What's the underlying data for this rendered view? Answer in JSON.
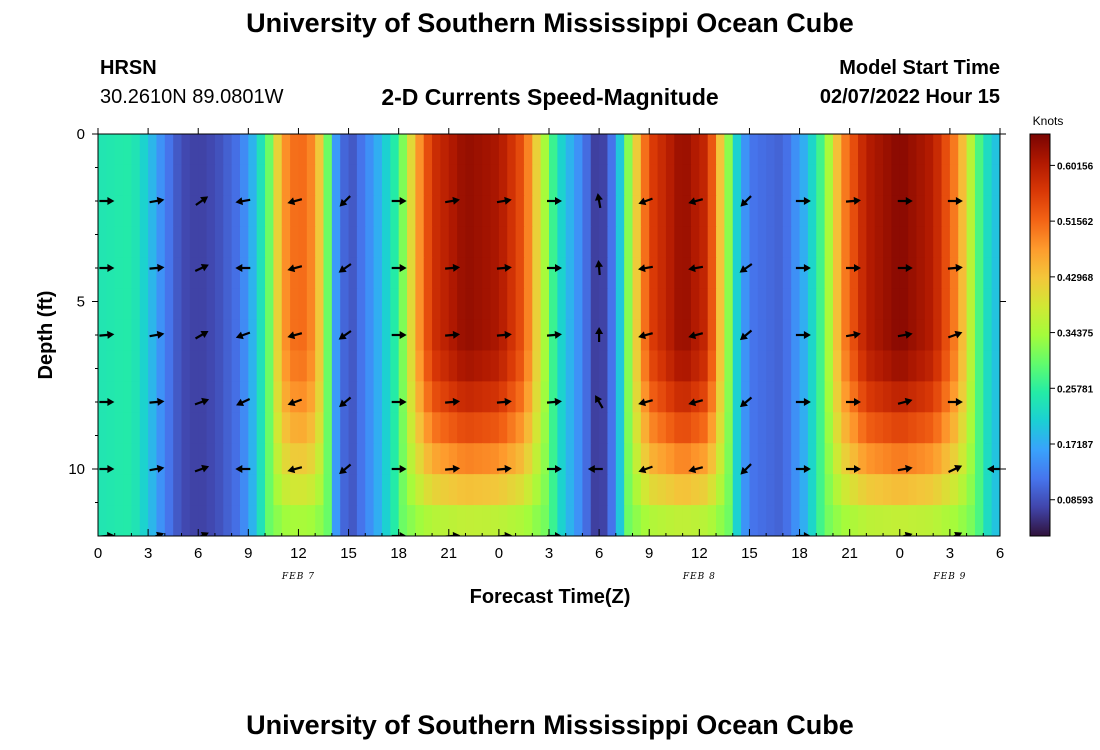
{
  "header": {
    "title": "University of Southern Mississippi Ocean Cube",
    "station": "HRSN",
    "coords": "30.2610N  89.0801W",
    "subtitle": "2-D Currents Speed-Magnitude",
    "model_start_label": "Model Start Time",
    "model_start_value": "02/07/2022 Hour 15"
  },
  "footer": {
    "title": "University of Southern Mississippi Ocean Cube"
  },
  "colors": {
    "colormap": [
      "#30123b",
      "#4145ab",
      "#4675ed",
      "#39a2fc",
      "#1bcfd4",
      "#24eca6",
      "#61fc6c",
      "#a4fc3b",
      "#d1e834",
      "#f3c63a",
      "#fe9b2d",
      "#f36315",
      "#d93806",
      "#b11901",
      "#7a0402"
    ],
    "arrow": "#000000"
  },
  "chart_data": {
    "type": "heatmap",
    "title": "2-D Currents Speed-Magnitude",
    "xlabel": "Forecast Time(Z)",
    "ylabel": "Depth (ft)",
    "xlim": [
      0,
      54
    ],
    "ylim": [
      12,
      0
    ],
    "x_ticks": [
      {
        "x": 0,
        "label": "0"
      },
      {
        "x": 3,
        "label": "3"
      },
      {
        "x": 6,
        "label": "6"
      },
      {
        "x": 9,
        "label": "9"
      },
      {
        "x": 12,
        "label": "12"
      },
      {
        "x": 15,
        "label": "15"
      },
      {
        "x": 18,
        "label": "18"
      },
      {
        "x": 21,
        "label": "21"
      },
      {
        "x": 24,
        "label": "0"
      },
      {
        "x": 27,
        "label": "3"
      },
      {
        "x": 30,
        "label": "6"
      },
      {
        "x": 33,
        "label": "9"
      },
      {
        "x": 36,
        "label": "12"
      },
      {
        "x": 39,
        "label": "15"
      },
      {
        "x": 42,
        "label": "18"
      },
      {
        "x": 45,
        "label": "21"
      },
      {
        "x": 48,
        "label": "0"
      },
      {
        "x": 51,
        "label": "3"
      },
      {
        "x": 54,
        "label": "6"
      }
    ],
    "y_ticks": [
      {
        "y": 0,
        "label": "0"
      },
      {
        "y": 5,
        "label": "5"
      },
      {
        "y": 10,
        "label": "10"
      }
    ],
    "date_labels": [
      {
        "x": 12,
        "label": "FEB 7"
      },
      {
        "x": 36,
        "label": "FEB 8"
      },
      {
        "x": 51,
        "label": "FEB 9"
      }
    ],
    "colorbar": {
      "unit": "Knots",
      "min": 0.03,
      "max": 0.65,
      "ticks": [
        "0.60156",
        "0.51562",
        "0.42968",
        "0.34375",
        "0.25781",
        "0.17187",
        "0.08593"
      ],
      "tick_values": [
        0.60156,
        0.51562,
        0.42968,
        0.34375,
        0.25781,
        0.17187,
        0.08593
      ]
    },
    "time_profile": [
      {
        "t": 0,
        "s": 0.24
      },
      {
        "t": 2,
        "s": 0.25
      },
      {
        "t": 3,
        "s": 0.2
      },
      {
        "t": 4,
        "s": 0.13
      },
      {
        "t": 5,
        "s": 0.08
      },
      {
        "t": 6,
        "s": 0.07
      },
      {
        "t": 7,
        "s": 0.08
      },
      {
        "t": 8.5,
        "s": 0.12
      },
      {
        "t": 9.5,
        "s": 0.2
      },
      {
        "t": 10.3,
        "s": 0.31
      },
      {
        "t": 11,
        "s": 0.47
      },
      {
        "t": 12,
        "s": 0.52
      },
      {
        "t": 13,
        "s": 0.48
      },
      {
        "t": 13.6,
        "s": 0.35
      },
      {
        "t": 14.2,
        "s": 0.16
      },
      {
        "t": 15,
        "s": 0.08
      },
      {
        "t": 16,
        "s": 0.13
      },
      {
        "t": 17,
        "s": 0.19
      },
      {
        "t": 18,
        "s": 0.27
      },
      {
        "t": 19,
        "s": 0.45
      },
      {
        "t": 20,
        "s": 0.57
      },
      {
        "t": 22,
        "s": 0.63
      },
      {
        "t": 24,
        "s": 0.61
      },
      {
        "t": 25.5,
        "s": 0.53
      },
      {
        "t": 26.5,
        "s": 0.38
      },
      {
        "t": 27.5,
        "s": 0.23
      },
      {
        "t": 29,
        "s": 0.13
      },
      {
        "t": 30,
        "s": 0.05
      },
      {
        "t": 31,
        "s": 0.14
      },
      {
        "t": 32,
        "s": 0.38
      },
      {
        "t": 33,
        "s": 0.55
      },
      {
        "t": 35,
        "s": 0.63
      },
      {
        "t": 36.5,
        "s": 0.58
      },
      {
        "t": 37.5,
        "s": 0.38
      },
      {
        "t": 38.3,
        "s": 0.2
      },
      {
        "t": 39,
        "s": 0.12
      },
      {
        "t": 41,
        "s": 0.1
      },
      {
        "t": 42.5,
        "s": 0.19
      },
      {
        "t": 43.5,
        "s": 0.3
      },
      {
        "t": 44.5,
        "s": 0.48
      },
      {
        "t": 46,
        "s": 0.6
      },
      {
        "t": 48,
        "s": 0.64
      },
      {
        "t": 50,
        "s": 0.6
      },
      {
        "t": 51.5,
        "s": 0.48
      },
      {
        "t": 52.3,
        "s": 0.35
      },
      {
        "t": 53,
        "s": 0.24
      },
      {
        "t": 54,
        "s": 0.18
      }
    ],
    "arrows": [
      {
        "t": 0.5,
        "d": 2,
        "dir": 0
      },
      {
        "t": 3.5,
        "d": 2,
        "dir": 10
      },
      {
        "t": 6.2,
        "d": 2,
        "dir": 35
      },
      {
        "t": 8.7,
        "d": 2,
        "dir": 190
      },
      {
        "t": 11.8,
        "d": 2,
        "dir": 195
      },
      {
        "t": 14.8,
        "d": 2,
        "dir": 225
      },
      {
        "t": 18,
        "d": 2,
        "dir": 0
      },
      {
        "t": 21.2,
        "d": 2,
        "dir": 10
      },
      {
        "t": 24.3,
        "d": 2,
        "dir": 10
      },
      {
        "t": 27.3,
        "d": 2,
        "dir": 0
      },
      {
        "t": 30,
        "d": 2,
        "dir": 100
      },
      {
        "t": 32.8,
        "d": 2,
        "dir": 200
      },
      {
        "t": 35.8,
        "d": 2,
        "dir": 195
      },
      {
        "t": 38.8,
        "d": 2,
        "dir": 225
      },
      {
        "t": 42.2,
        "d": 2,
        "dir": 0
      },
      {
        "t": 45.2,
        "d": 2,
        "dir": 5
      },
      {
        "t": 48.3,
        "d": 2,
        "dir": 0
      },
      {
        "t": 51.3,
        "d": 2,
        "dir": 0
      },
      {
        "t": 0.5,
        "d": 4,
        "dir": 0
      },
      {
        "t": 3.5,
        "d": 4,
        "dir": 5
      },
      {
        "t": 6.2,
        "d": 4,
        "dir": 25
      },
      {
        "t": 8.7,
        "d": 4,
        "dir": 180
      },
      {
        "t": 11.8,
        "d": 4,
        "dir": 195
      },
      {
        "t": 14.8,
        "d": 4,
        "dir": 215
      },
      {
        "t": 18,
        "d": 4,
        "dir": 0
      },
      {
        "t": 21.2,
        "d": 4,
        "dir": 5
      },
      {
        "t": 24.3,
        "d": 4,
        "dir": 5
      },
      {
        "t": 27.3,
        "d": 4,
        "dir": 0
      },
      {
        "t": 30,
        "d": 4,
        "dir": 95
      },
      {
        "t": 32.8,
        "d": 4,
        "dir": 190
      },
      {
        "t": 35.8,
        "d": 4,
        "dir": 190
      },
      {
        "t": 38.8,
        "d": 4,
        "dir": 215
      },
      {
        "t": 42.2,
        "d": 4,
        "dir": 0
      },
      {
        "t": 45.2,
        "d": 4,
        "dir": 0
      },
      {
        "t": 48.3,
        "d": 4,
        "dir": 0
      },
      {
        "t": 51.3,
        "d": 4,
        "dir": 5
      },
      {
        "t": 0.5,
        "d": 6,
        "dir": 5
      },
      {
        "t": 3.5,
        "d": 6,
        "dir": 10
      },
      {
        "t": 6.2,
        "d": 6,
        "dir": 30
      },
      {
        "t": 8.7,
        "d": 6,
        "dir": 200
      },
      {
        "t": 11.8,
        "d": 6,
        "dir": 195
      },
      {
        "t": 14.8,
        "d": 6,
        "dir": 215
      },
      {
        "t": 18,
        "d": 6,
        "dir": 0
      },
      {
        "t": 21.2,
        "d": 6,
        "dir": 5
      },
      {
        "t": 24.3,
        "d": 6,
        "dir": 5
      },
      {
        "t": 27.3,
        "d": 6,
        "dir": 5
      },
      {
        "t": 30,
        "d": 6,
        "dir": 90
      },
      {
        "t": 32.8,
        "d": 6,
        "dir": 195
      },
      {
        "t": 35.8,
        "d": 6,
        "dir": 195
      },
      {
        "t": 38.8,
        "d": 6,
        "dir": 220
      },
      {
        "t": 42.2,
        "d": 6,
        "dir": 0
      },
      {
        "t": 45.2,
        "d": 6,
        "dir": 10
      },
      {
        "t": 48.3,
        "d": 6,
        "dir": 10
      },
      {
        "t": 51.3,
        "d": 6,
        "dir": 20
      },
      {
        "t": 0.5,
        "d": 8,
        "dir": 0
      },
      {
        "t": 3.5,
        "d": 8,
        "dir": 5
      },
      {
        "t": 6.2,
        "d": 8,
        "dir": 20
      },
      {
        "t": 8.7,
        "d": 8,
        "dir": 205
      },
      {
        "t": 11.8,
        "d": 8,
        "dir": 200
      },
      {
        "t": 14.8,
        "d": 8,
        "dir": 220
      },
      {
        "t": 18,
        "d": 8,
        "dir": 0
      },
      {
        "t": 21.2,
        "d": 8,
        "dir": 5
      },
      {
        "t": 24.3,
        "d": 8,
        "dir": 5
      },
      {
        "t": 27.3,
        "d": 8,
        "dir": 5
      },
      {
        "t": 30,
        "d": 8,
        "dir": 120
      },
      {
        "t": 32.8,
        "d": 8,
        "dir": 195
      },
      {
        "t": 35.8,
        "d": 8,
        "dir": 195
      },
      {
        "t": 38.8,
        "d": 8,
        "dir": 220
      },
      {
        "t": 42.2,
        "d": 8,
        "dir": 0
      },
      {
        "t": 45.2,
        "d": 8,
        "dir": 0
      },
      {
        "t": 48.3,
        "d": 8,
        "dir": 15
      },
      {
        "t": 51.3,
        "d": 8,
        "dir": 0
      },
      {
        "t": 0.5,
        "d": 10,
        "dir": 0
      },
      {
        "t": 3.5,
        "d": 10,
        "dir": 10
      },
      {
        "t": 6.2,
        "d": 10,
        "dir": 20
      },
      {
        "t": 8.7,
        "d": 10,
        "dir": 180
      },
      {
        "t": 11.8,
        "d": 10,
        "dir": 195
      },
      {
        "t": 14.8,
        "d": 10,
        "dir": 220
      },
      {
        "t": 18,
        "d": 10,
        "dir": 0
      },
      {
        "t": 21.2,
        "d": 10,
        "dir": 5
      },
      {
        "t": 24.3,
        "d": 10,
        "dir": 5
      },
      {
        "t": 27.3,
        "d": 10,
        "dir": 0
      },
      {
        "t": 29.8,
        "d": 10,
        "dir": 180
      },
      {
        "t": 32.8,
        "d": 10,
        "dir": 200
      },
      {
        "t": 35.8,
        "d": 10,
        "dir": 195
      },
      {
        "t": 38.8,
        "d": 10,
        "dir": 225
      },
      {
        "t": 42.2,
        "d": 10,
        "dir": 0
      },
      {
        "t": 45.2,
        "d": 10,
        "dir": 0
      },
      {
        "t": 48.3,
        "d": 10,
        "dir": 10
      },
      {
        "t": 51.3,
        "d": 10,
        "dir": 25
      },
      {
        "t": 53.7,
        "d": 10,
        "dir": 180
      },
      {
        "t": 0.5,
        "d": 12,
        "dir": 5
      },
      {
        "t": 3.5,
        "d": 12,
        "dir": 20
      },
      {
        "t": 6.2,
        "d": 12,
        "dir": 25
      },
      {
        "t": 18,
        "d": 12,
        "dir": 0
      },
      {
        "t": 21.2,
        "d": 12,
        "dir": 5
      },
      {
        "t": 24.3,
        "d": 12,
        "dir": 5
      },
      {
        "t": 27.3,
        "d": 12,
        "dir": 0
      },
      {
        "t": 42.2,
        "d": 12,
        "dir": 0
      },
      {
        "t": 48.3,
        "d": 12,
        "dir": 15
      },
      {
        "t": 51.3,
        "d": 12,
        "dir": 25
      }
    ]
  }
}
